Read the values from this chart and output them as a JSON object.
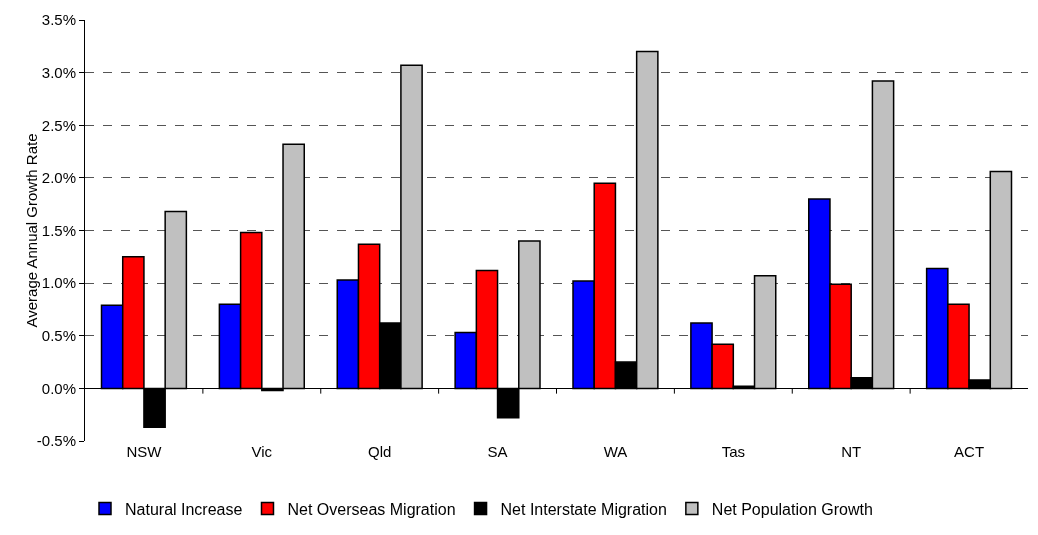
{
  "chart_data": {
    "type": "bar",
    "ylabel": "Average Annual Growth Rate",
    "categories": [
      "NSW",
      "Vic",
      "Qld",
      "SA",
      "WA",
      "Tas",
      "NT",
      "ACT"
    ],
    "series": [
      {
        "name": "Natural Increase",
        "color": "#0000ff",
        "values": [
          0.79,
          0.8,
          1.03,
          0.53,
          1.02,
          0.62,
          1.8,
          1.14
        ]
      },
      {
        "name": "Net Overseas Migration",
        "color": "#ff0000",
        "values": [
          1.25,
          1.48,
          1.37,
          1.12,
          1.95,
          0.42,
          0.99,
          0.8
        ]
      },
      {
        "name": "Net Interstate Migration",
        "color": "#000000",
        "values": [
          -0.37,
          -0.02,
          0.62,
          -0.28,
          0.25,
          0.02,
          0.1,
          0.08
        ]
      },
      {
        "name": "Net Population Growth",
        "color": "#c0c0c0",
        "values": [
          1.68,
          2.32,
          3.07,
          1.4,
          3.2,
          1.07,
          2.92,
          2.06
        ]
      }
    ],
    "ylim": [
      -0.5,
      3.5
    ],
    "yticks": [
      {
        "value": -0.5,
        "label": "-0.5%"
      },
      {
        "value": 0,
        "label": "0.0%"
      },
      {
        "value": 0.5,
        "label": "0.5%"
      },
      {
        "value": 1,
        "label": "1.0%"
      },
      {
        "value": 1.5,
        "label": "1.5%"
      },
      {
        "value": 2,
        "label": "2.0%"
      },
      {
        "value": 2.5,
        "label": "2.5%"
      },
      {
        "value": 3,
        "label": "3.0%"
      },
      {
        "value": 3.5,
        "label": "3.5%"
      }
    ],
    "grid": "y",
    "legend": "bottom"
  }
}
